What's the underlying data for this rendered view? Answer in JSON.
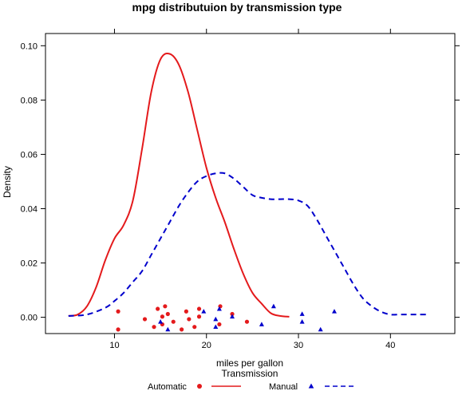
{
  "chart_data": {
    "type": "density",
    "title": "mpg distributuion by transmission type",
    "xlabel": "miles per gallon",
    "ylabel": "Density",
    "xlim": [
      2.5,
      47.0
    ],
    "ylim": [
      -0.006,
      0.1045
    ],
    "x_ticks": [
      10,
      20,
      30,
      40
    ],
    "x_tick_labels": [
      "10",
      "20",
      "30",
      "40"
    ],
    "y_ticks": [
      0.0,
      0.02,
      0.04,
      0.06,
      0.08,
      0.1
    ],
    "y_tick_labels": [
      "0.00",
      "0.02",
      "0.04",
      "0.06",
      "0.08",
      "0.10"
    ],
    "legend": {
      "title": "Transmission",
      "position": "bottom"
    },
    "series": [
      {
        "name": "Automatic",
        "color": "#e41a1c",
        "line_style": "solid",
        "marker": "circle",
        "density_x": [
          5.0,
          6.0,
          7.0,
          8.0,
          9.0,
          10.0,
          11.0,
          12.0,
          13.0,
          14.0,
          15.0,
          16.0,
          17.0,
          18.0,
          19.0,
          20.0,
          21.0,
          22.0,
          23.0,
          24.0,
          25.0,
          26.0,
          27.0,
          28.0,
          29.0
        ],
        "density_y": [
          0.0005,
          0.001,
          0.004,
          0.011,
          0.021,
          0.029,
          0.034,
          0.043,
          0.062,
          0.083,
          0.095,
          0.097,
          0.093,
          0.083,
          0.069,
          0.055,
          0.044,
          0.035,
          0.025,
          0.016,
          0.009,
          0.005,
          0.0015,
          0.0005,
          0.0002
        ],
        "rug_x": [
          10.4,
          10.4,
          13.3,
          14.3,
          14.7,
          15.2,
          15.2,
          15.5,
          15.8,
          16.4,
          17.3,
          17.8,
          18.1,
          18.7,
          19.2,
          19.2,
          21.4,
          21.5,
          22.8,
          24.4
        ]
      },
      {
        "name": "Manual",
        "color": "#0000cc",
        "line_style": "dashed",
        "marker": "triangle",
        "density_x": [
          5.0,
          7.0,
          9.0,
          10.0,
          11.0,
          12.0,
          13.0,
          14.0,
          15.0,
          16.0,
          17.0,
          18.0,
          19.0,
          20.0,
          21.0,
          22.0,
          23.0,
          24.0,
          25.0,
          26.0,
          27.0,
          28.0,
          29.0,
          30.0,
          31.0,
          32.0,
          33.0,
          34.0,
          35.0,
          36.0,
          37.0,
          38.0,
          39.0,
          40.0,
          41.0,
          42.0,
          43.0,
          44.0
        ],
        "density_y": [
          0.0005,
          0.001,
          0.0035,
          0.006,
          0.009,
          0.013,
          0.017,
          0.023,
          0.029,
          0.035,
          0.041,
          0.046,
          0.05,
          0.052,
          0.053,
          0.053,
          0.051,
          0.048,
          0.045,
          0.044,
          0.0435,
          0.0435,
          0.0435,
          0.043,
          0.041,
          0.036,
          0.03,
          0.024,
          0.018,
          0.012,
          0.007,
          0.004,
          0.002,
          0.001,
          0.001,
          0.001,
          0.001,
          0.001
        ],
        "rug_x": [
          15.0,
          15.8,
          19.7,
          21.0,
          21.0,
          21.4,
          22.8,
          26.0,
          27.3,
          30.4,
          30.4,
          32.4,
          33.9
        ]
      }
    ]
  }
}
